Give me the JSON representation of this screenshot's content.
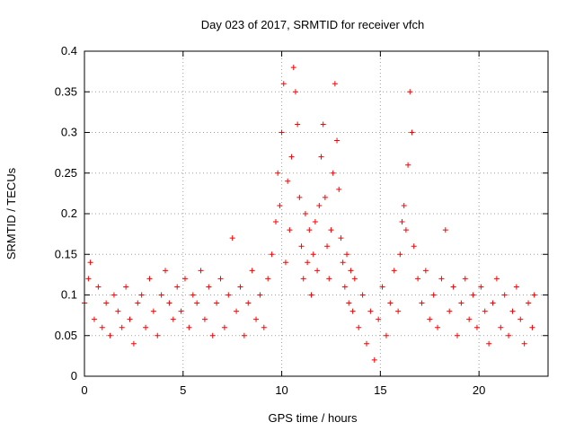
{
  "chart_data": {
    "type": "scatter",
    "title": "Day 023 of 2017, SRMTID for receiver vfch",
    "xlabel": "GPS time / hours",
    "ylabel": "SRMTID / TECUs",
    "xlim": [
      0,
      23.5
    ],
    "ylim": [
      0,
      0.4
    ],
    "xticks": [
      0,
      5,
      10,
      15,
      20
    ],
    "xtick_labels": [
      "0",
      "5",
      "10",
      "15",
      "20"
    ],
    "yticks": [
      0,
      0.05,
      0.1,
      0.15,
      0.2,
      0.25,
      0.3,
      0.35,
      0.4
    ],
    "ytick_labels": [
      "0",
      "0.05",
      "0.1",
      "0.15",
      "0.2",
      "0.25",
      "0.3",
      "0.35",
      "0.4"
    ],
    "grid": true,
    "marker": "+",
    "color": "#ff0000",
    "series": [
      {
        "name": "SRMTID",
        "points": [
          [
            0.0,
            0.09
          ],
          [
            0.2,
            0.12
          ],
          [
            0.3,
            0.14
          ],
          [
            0.5,
            0.07
          ],
          [
            0.7,
            0.11
          ],
          [
            0.9,
            0.06
          ],
          [
            1.1,
            0.09
          ],
          [
            1.3,
            0.05
          ],
          [
            1.5,
            0.1
          ],
          [
            1.7,
            0.08
          ],
          [
            1.9,
            0.06
          ],
          [
            2.1,
            0.11
          ],
          [
            2.3,
            0.07
          ],
          [
            2.5,
            0.04
          ],
          [
            2.7,
            0.09
          ],
          [
            2.9,
            0.1
          ],
          [
            3.1,
            0.06
          ],
          [
            3.3,
            0.12
          ],
          [
            3.5,
            0.08
          ],
          [
            3.7,
            0.05
          ],
          [
            3.9,
            0.1
          ],
          [
            4.1,
            0.13
          ],
          [
            4.3,
            0.09
          ],
          [
            4.5,
            0.07
          ],
          [
            4.7,
            0.11
          ],
          [
            4.9,
            0.08
          ],
          [
            5.1,
            0.12
          ],
          [
            5.3,
            0.06
          ],
          [
            5.5,
            0.1
          ],
          [
            5.7,
            0.09
          ],
          [
            5.9,
            0.13
          ],
          [
            6.1,
            0.07
          ],
          [
            6.3,
            0.11
          ],
          [
            6.5,
            0.05
          ],
          [
            6.7,
            0.09
          ],
          [
            6.9,
            0.12
          ],
          [
            7.1,
            0.06
          ],
          [
            7.3,
            0.1
          ],
          [
            7.5,
            0.17
          ],
          [
            7.7,
            0.08
          ],
          [
            7.9,
            0.11
          ],
          [
            8.1,
            0.05
          ],
          [
            8.3,
            0.09
          ],
          [
            8.5,
            0.13
          ],
          [
            8.7,
            0.07
          ],
          [
            8.9,
            0.1
          ],
          [
            9.1,
            0.06
          ],
          [
            9.3,
            0.12
          ],
          [
            9.5,
            0.15
          ],
          [
            9.7,
            0.19
          ],
          [
            9.8,
            0.25
          ],
          [
            9.9,
            0.21
          ],
          [
            10.0,
            0.3
          ],
          [
            10.1,
            0.36
          ],
          [
            10.2,
            0.14
          ],
          [
            10.3,
            0.24
          ],
          [
            10.4,
            0.18
          ],
          [
            10.5,
            0.27
          ],
          [
            10.6,
            0.38
          ],
          [
            10.7,
            0.35
          ],
          [
            10.8,
            0.31
          ],
          [
            10.9,
            0.22
          ],
          [
            11.0,
            0.16
          ],
          [
            11.1,
            0.12
          ],
          [
            11.2,
            0.2
          ],
          [
            11.3,
            0.14
          ],
          [
            11.4,
            0.18
          ],
          [
            11.5,
            0.1
          ],
          [
            11.6,
            0.15
          ],
          [
            11.7,
            0.19
          ],
          [
            11.8,
            0.13
          ],
          [
            11.9,
            0.21
          ],
          [
            12.0,
            0.27
          ],
          [
            12.1,
            0.31
          ],
          [
            12.2,
            0.22
          ],
          [
            12.3,
            0.16
          ],
          [
            12.4,
            0.12
          ],
          [
            12.5,
            0.18
          ],
          [
            12.6,
            0.25
          ],
          [
            12.7,
            0.36
          ],
          [
            12.8,
            0.29
          ],
          [
            12.9,
            0.23
          ],
          [
            13.0,
            0.17
          ],
          [
            13.1,
            0.14
          ],
          [
            13.2,
            0.11
          ],
          [
            13.3,
            0.15
          ],
          [
            13.4,
            0.09
          ],
          [
            13.5,
            0.13
          ],
          [
            13.6,
            0.08
          ],
          [
            13.7,
            0.12
          ],
          [
            13.9,
            0.06
          ],
          [
            14.1,
            0.1
          ],
          [
            14.3,
            0.04
          ],
          [
            14.5,
            0.08
          ],
          [
            14.7,
            0.02
          ],
          [
            14.9,
            0.07
          ],
          [
            15.1,
            0.11
          ],
          [
            15.3,
            0.05
          ],
          [
            15.5,
            0.09
          ],
          [
            15.7,
            0.13
          ],
          [
            15.9,
            0.08
          ],
          [
            16.0,
            0.15
          ],
          [
            16.1,
            0.19
          ],
          [
            16.2,
            0.21
          ],
          [
            16.3,
            0.18
          ],
          [
            16.4,
            0.26
          ],
          [
            16.5,
            0.35
          ],
          [
            16.6,
            0.3
          ],
          [
            16.7,
            0.16
          ],
          [
            16.9,
            0.12
          ],
          [
            17.1,
            0.09
          ],
          [
            17.3,
            0.13
          ],
          [
            17.5,
            0.07
          ],
          [
            17.7,
            0.1
          ],
          [
            17.9,
            0.06
          ],
          [
            18.1,
            0.12
          ],
          [
            18.3,
            0.18
          ],
          [
            18.5,
            0.08
          ],
          [
            18.7,
            0.11
          ],
          [
            18.9,
            0.05
          ],
          [
            19.1,
            0.09
          ],
          [
            19.3,
            0.12
          ],
          [
            19.5,
            0.07
          ],
          [
            19.7,
            0.1
          ],
          [
            19.9,
            0.06
          ],
          [
            20.1,
            0.11
          ],
          [
            20.3,
            0.08
          ],
          [
            20.5,
            0.04
          ],
          [
            20.7,
            0.09
          ],
          [
            20.9,
            0.12
          ],
          [
            21.1,
            0.06
          ],
          [
            21.3,
            0.1
          ],
          [
            21.5,
            0.05
          ],
          [
            21.7,
            0.08
          ],
          [
            21.9,
            0.11
          ],
          [
            22.1,
            0.07
          ],
          [
            22.3,
            0.04
          ],
          [
            22.5,
            0.09
          ],
          [
            22.7,
            0.06
          ],
          [
            22.8,
            0.1
          ]
        ]
      }
    ]
  }
}
